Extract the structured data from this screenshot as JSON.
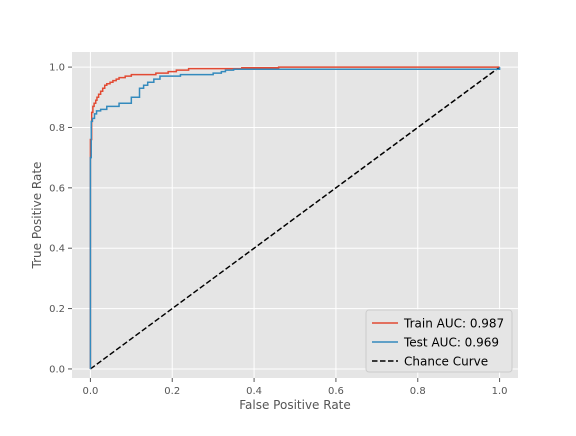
{
  "chart_data": {
    "type": "line",
    "title": "",
    "xlabel": "False Positive Rate",
    "ylabel": "True Positive Rate",
    "xlim": [
      -0.045,
      1.045
    ],
    "ylim": [
      -0.03,
      1.05
    ],
    "grid": true,
    "legend_position": "lower-right",
    "x_ticks": [
      0.0,
      0.2,
      0.4,
      0.6,
      0.8,
      1.0
    ],
    "x_tick_labels": [
      "0.0",
      "0.2",
      "0.4",
      "0.6",
      "0.8",
      "1.0"
    ],
    "y_ticks": [
      0.0,
      0.2,
      0.4,
      0.6,
      0.8,
      1.0
    ],
    "y_tick_labels": [
      "0.0",
      "0.2",
      "0.4",
      "0.6",
      "0.8",
      "1.0"
    ],
    "series": [
      {
        "name": "Train AUC: 0.987",
        "color": "#E24A33",
        "dash": "solid",
        "x": [
          0.0,
          0.0,
          0.003,
          0.003,
          0.006,
          0.006,
          0.009,
          0.009,
          0.013,
          0.013,
          0.016,
          0.016,
          0.02,
          0.02,
          0.025,
          0.025,
          0.03,
          0.03,
          0.035,
          0.035,
          0.04,
          0.04,
          0.048,
          0.048,
          0.055,
          0.055,
          0.063,
          0.063,
          0.07,
          0.07,
          0.085,
          0.085,
          0.1,
          0.1,
          0.16,
          0.16,
          0.19,
          0.19,
          0.21,
          0.21,
          0.24,
          0.24,
          0.37,
          0.37,
          0.46,
          0.46,
          1.0
        ],
        "y": [
          0.0,
          0.76,
          0.76,
          0.85,
          0.85,
          0.87,
          0.87,
          0.88,
          0.88,
          0.89,
          0.89,
          0.9,
          0.9,
          0.91,
          0.91,
          0.92,
          0.92,
          0.93,
          0.93,
          0.94,
          0.94,
          0.945,
          0.945,
          0.95,
          0.95,
          0.955,
          0.955,
          0.96,
          0.96,
          0.965,
          0.965,
          0.97,
          0.97,
          0.975,
          0.975,
          0.98,
          0.98,
          0.985,
          0.985,
          0.99,
          0.99,
          0.995,
          0.995,
          0.998,
          0.998,
          1.0,
          1.0
        ]
      },
      {
        "name": "Test AUC: 0.969",
        "color": "#348ABD",
        "dash": "solid",
        "x": [
          0.0,
          0.0,
          0.002,
          0.002,
          0.005,
          0.005,
          0.01,
          0.01,
          0.015,
          0.015,
          0.025,
          0.025,
          0.04,
          0.04,
          0.07,
          0.07,
          0.1,
          0.1,
          0.12,
          0.12,
          0.13,
          0.13,
          0.14,
          0.14,
          0.155,
          0.155,
          0.17,
          0.17,
          0.22,
          0.22,
          0.3,
          0.3,
          0.32,
          0.32,
          0.33,
          0.33,
          0.35,
          0.35,
          1.0,
          1.0
        ],
        "y": [
          0.0,
          0.7,
          0.7,
          0.82,
          0.82,
          0.83,
          0.83,
          0.845,
          0.845,
          0.855,
          0.855,
          0.86,
          0.86,
          0.87,
          0.87,
          0.88,
          0.88,
          0.9,
          0.9,
          0.93,
          0.93,
          0.94,
          0.94,
          0.95,
          0.95,
          0.96,
          0.96,
          0.97,
          0.97,
          0.975,
          0.975,
          0.98,
          0.98,
          0.985,
          0.985,
          0.99,
          0.99,
          0.993,
          0.993,
          1.0
        ]
      },
      {
        "name": "Chance Curve",
        "color": "#000000",
        "dash": "dashed",
        "x": [
          0.0,
          1.0
        ],
        "y": [
          0.0,
          1.0
        ]
      }
    ]
  },
  "colors": {
    "plot_background": "#E5E5E5",
    "grid": "#FFFFFF",
    "text": "#555555",
    "legend_background": "#E5E5E5",
    "legend_border": "#CCCCCC"
  }
}
